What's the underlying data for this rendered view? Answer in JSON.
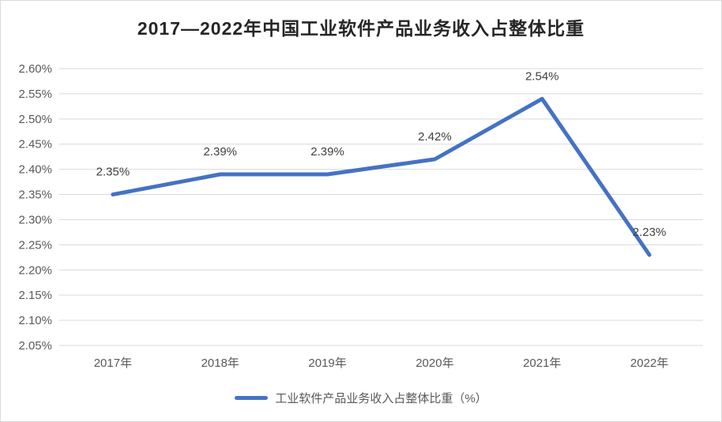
{
  "title": "2017—2022年中国工业软件产品业务收入占整体比重",
  "chart_data": {
    "type": "line",
    "title": "2017—2022年中国工业软件产品业务收入占整体比重",
    "categories": [
      "2017年",
      "2018年",
      "2019年",
      "2020年",
      "2021年",
      "2022年"
    ],
    "series": [
      {
        "name": "工业软件产品业务收入占整体比重（%）",
        "values": [
          2.35,
          2.39,
          2.39,
          2.42,
          2.54,
          2.23
        ],
        "color": "#4472C4"
      }
    ],
    "data_labels": [
      "2.35%",
      "2.39%",
      "2.39%",
      "2.42%",
      "2.54%",
      "2.23%"
    ],
    "y_ticks": [
      {
        "label": "2.60%",
        "value": 2.6
      },
      {
        "label": "2.55%",
        "value": 2.55
      },
      {
        "label": "2.50%",
        "value": 2.5
      },
      {
        "label": "2.45%",
        "value": 2.45
      },
      {
        "label": "2.40%",
        "value": 2.4
      },
      {
        "label": "2.35%",
        "value": 2.35
      },
      {
        "label": "2.30%",
        "value": 2.3
      },
      {
        "label": "2.25%",
        "value": 2.25
      },
      {
        "label": "2.20%",
        "value": 2.2
      },
      {
        "label": "2.15%",
        "value": 2.15
      },
      {
        "label": "2.10%",
        "value": 2.1
      },
      {
        "label": "2.05%",
        "value": 2.05
      }
    ],
    "ylim": [
      2.05,
      2.6
    ],
    "grid": true,
    "legend_position": "bottom",
    "colors": {
      "line": "#4472C4",
      "grid": "#D9D9D9",
      "axis_text": "#595959",
      "data_label_text": "#404040",
      "title_text": "#262626",
      "frame_border": "#D9D9D9",
      "background": "#FFFFFF"
    }
  }
}
